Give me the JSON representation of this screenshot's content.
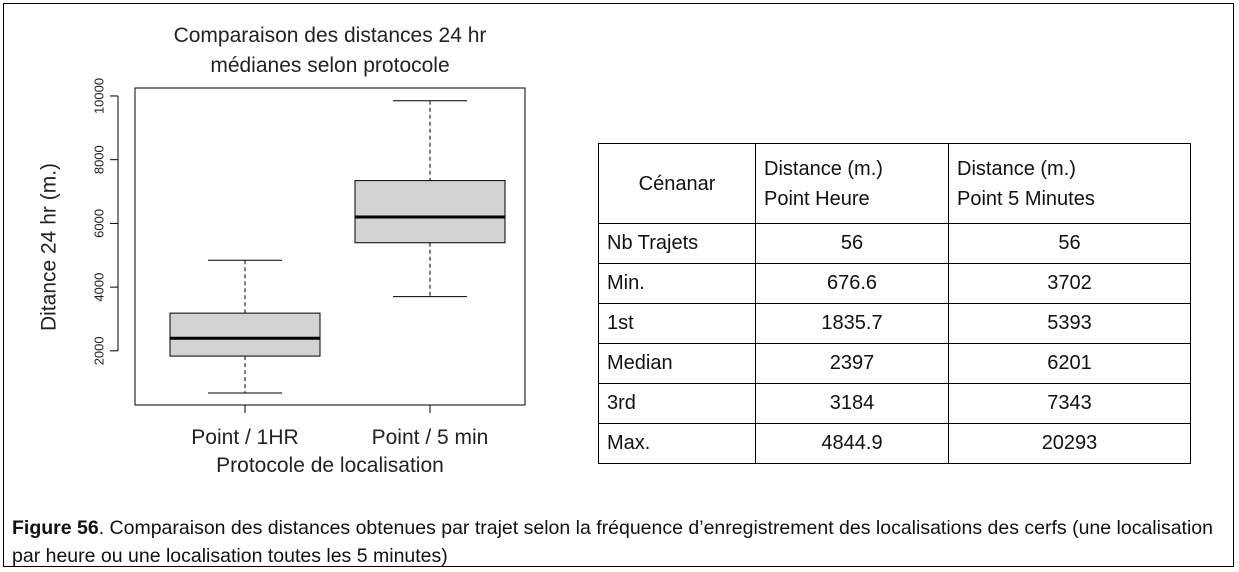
{
  "chart_data": {
    "type": "boxplot",
    "title": [
      "Comparaison des distances 24 hr",
      "médianes selon protocole"
    ],
    "y_label": "Ditance 24 hr (m.)",
    "x_label": "Protocole de localisation",
    "categories": [
      "Point / 1HR",
      "Point / 5 min"
    ],
    "boxes": [
      {
        "low": 676.6,
        "q1": 1835.7,
        "median": 2397,
        "q3": 3184,
        "high": 4844.9
      },
      {
        "low": 3702,
        "q1": 5393,
        "median": 6201,
        "q3": 7343,
        "high": 9850
      }
    ],
    "color": "#d3d3d3",
    "ylim": [
      300,
      10250
    ],
    "yticks": [
      2000,
      4000,
      6000,
      8000,
      10000
    ]
  },
  "table": {
    "header": [
      [
        "Cénanar"
      ],
      [
        "Distance (m.)",
        "Point Heure"
      ],
      [
        "Distance (m.)",
        "Point 5 Minutes"
      ]
    ],
    "rows": [
      [
        "Nb Trajets",
        56,
        56
      ],
      [
        "Min.",
        676.6,
        3702
      ],
      [
        "1st",
        1835.7,
        5393
      ],
      [
        "Median",
        2397,
        6201
      ],
      [
        "3rd",
        3184,
        7343
      ],
      [
        "Max.",
        4844.9,
        20293
      ]
    ]
  },
  "caption": {
    "label": "Figure 56",
    "text": ". Comparaison des distances obtenues par trajet selon la fréquence d’enregistrement des localisations des cerfs (une localisation par heure ou une localisation toutes les 5 minutes)"
  }
}
